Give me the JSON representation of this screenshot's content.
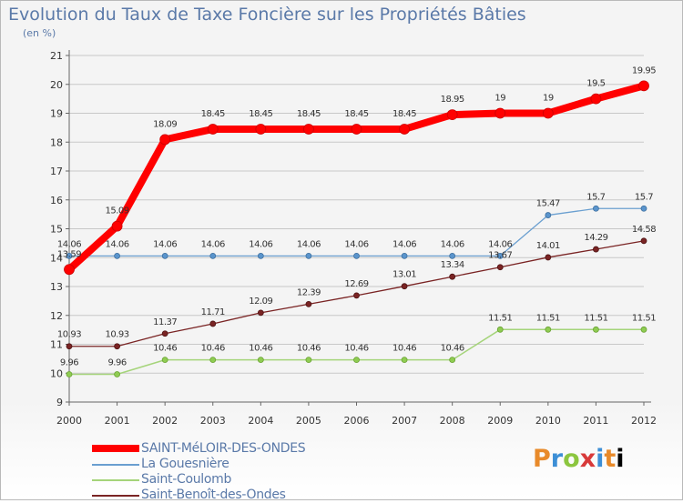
{
  "header": {
    "title": "Evolution du Taux de Taxe Foncière sur les Propriétés Bâties",
    "unit": "(en %)"
  },
  "brand": {
    "letters": [
      "P",
      "r",
      "o",
      "x",
      "i",
      "t",
      "i"
    ]
  },
  "colors": {
    "title": "#5a79a8",
    "grid": "#c8c8c8",
    "series": [
      "#ff0000",
      "#6a9fd0",
      "#a5d47a",
      "#7a2424"
    ]
  },
  "chart_data": {
    "type": "line",
    "title": "Evolution du Taux de Taxe Foncière sur les Propriétés Bâties",
    "ylabel": "(en %)",
    "xlabel": "",
    "x": [
      "2000",
      "2001",
      "2002",
      "2003",
      "2004",
      "2005",
      "2006",
      "2007",
      "2008",
      "2009",
      "2010",
      "2011",
      "2012"
    ],
    "ylim": [
      9,
      21
    ],
    "yticks": [
      "9",
      "10",
      "11",
      "12",
      "13",
      "14",
      "15",
      "16",
      "17",
      "18",
      "19",
      "20",
      "21"
    ],
    "grid": "horizontal",
    "legend": "bottom-left",
    "series": [
      {
        "name": "SAINT-MéLOIR-DES-ONDES",
        "values": [
          13.59,
          15.09,
          18.09,
          18.45,
          18.45,
          18.45,
          18.45,
          18.45,
          18.95,
          19,
          19,
          19.5,
          19.95
        ],
        "labels": [
          "13.59",
          "15.09",
          "18.09",
          "18.45",
          "18.45",
          "18.45",
          "18.45",
          "18.45",
          "18.95",
          "19",
          "19",
          "19.5",
          "19.95"
        ]
      },
      {
        "name": "La Gouesnière",
        "values": [
          14.06,
          14.06,
          14.06,
          14.06,
          14.06,
          14.06,
          14.06,
          14.06,
          14.06,
          14.06,
          15.47,
          15.7,
          15.7
        ],
        "labels": [
          "14.06",
          "14.06",
          "14.06",
          "14.06",
          "14.06",
          "14.06",
          "14.06",
          "14.06",
          "14.06",
          "14.06",
          "15.47",
          "15.7",
          "15.7"
        ]
      },
      {
        "name": "Saint-Coulomb",
        "values": [
          9.96,
          9.96,
          10.46,
          10.46,
          10.46,
          10.46,
          10.46,
          10.46,
          10.46,
          11.51,
          11.51,
          11.51,
          11.51
        ],
        "labels": [
          "9.96",
          "9.96",
          "10.46",
          "10.46",
          "10.46",
          "10.46",
          "10.46",
          "10.46",
          "10.46",
          "11.51",
          "11.51",
          "11.51",
          "11.51"
        ]
      },
      {
        "name": "Saint-Benoît-des-Ondes",
        "values": [
          10.93,
          10.93,
          11.37,
          11.71,
          12.09,
          12.39,
          12.69,
          13.01,
          13.34,
          13.67,
          14.01,
          14.29,
          14.58
        ],
        "labels": [
          "10.93",
          "10.93",
          "11.37",
          "11.71",
          "12.09",
          "12.39",
          "12.69",
          "13.01",
          "13.34",
          "13.67",
          "14.01",
          "14.29",
          "14.58"
        ]
      }
    ]
  }
}
